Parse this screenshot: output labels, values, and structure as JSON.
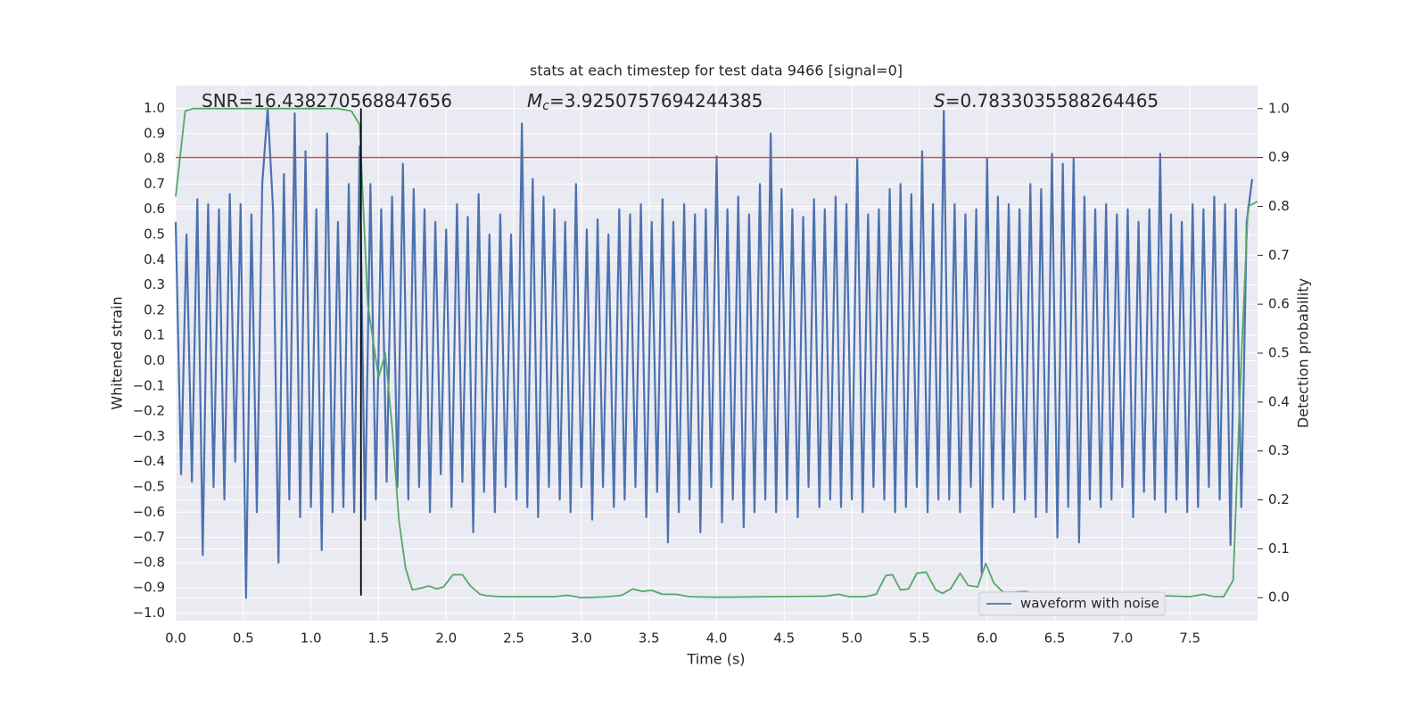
{
  "chart_data": {
    "type": "line",
    "title": "stats at each timestep for test data 9466 [signal=0]",
    "xlabel": "Time (s)",
    "ylabel": "Whitened strain",
    "y2label": "Detection probability",
    "xlim": [
      0,
      8.0
    ],
    "ylim": [
      -1.03,
      1.09
    ],
    "y2lim": [
      -0.047,
      1.047
    ],
    "xticks": [
      {
        "value": 0,
        "label": "0.0"
      },
      0.5,
      {
        "value": 1,
        "label": "1.0"
      },
      1.5,
      {
        "value": 2,
        "label": "2.0"
      },
      2.5,
      {
        "value": 3,
        "label": "3.0"
      },
      3.5,
      {
        "value": 4,
        "label": "4.0"
      },
      4.5,
      {
        "value": 5,
        "label": "5.0"
      },
      5.5,
      {
        "value": 6,
        "label": "6.0"
      },
      6.5,
      {
        "value": 7,
        "label": "7.0"
      },
      7.5
    ],
    "yticks": [
      {
        "value": -1,
        "label": "−1.0"
      },
      {
        "value": -0.9,
        "label": "−0.9"
      },
      {
        "value": -0.8,
        "label": "−0.8"
      },
      {
        "value": -0.7,
        "label": "−0.7"
      },
      {
        "value": -0.6,
        "label": "−0.6"
      },
      {
        "value": -0.5,
        "label": "−0.5"
      },
      {
        "value": -0.4,
        "label": "−0.4"
      },
      {
        "value": -0.3,
        "label": "−0.3"
      },
      {
        "value": -0.2,
        "label": "−0.2"
      },
      {
        "value": -0.1,
        "label": "−0.1"
      },
      {
        "value": 0,
        "label": "0.0"
      },
      0.1,
      0.2,
      0.3,
      0.4,
      0.5,
      0.6,
      0.7,
      0.8,
      0.9,
      {
        "value": 1,
        "label": "1.0"
      }
    ],
    "y2ticks": [
      {
        "value": 0,
        "label": "0.0"
      },
      0.1,
      0.2,
      0.3,
      0.4,
      0.5,
      0.6,
      0.7,
      0.8,
      0.9,
      {
        "value": 1,
        "label": "1.0"
      }
    ],
    "grid": true,
    "legend": "lower right",
    "series": [
      {
        "name": "waveform with noise",
        "color": "#4c72b0",
        "x": [
          0,
          0.04,
          0.08,
          0.12,
          0.16,
          0.2,
          0.24,
          0.28,
          0.32,
          0.36,
          0.4,
          0.44,
          0.48,
          0.52,
          0.56,
          0.6,
          0.64,
          0.68,
          0.72,
          0.76,
          0.8,
          0.84,
          0.88,
          0.92,
          0.96,
          1.0,
          1.04,
          1.08,
          1.12,
          1.16,
          1.2,
          1.24,
          1.28,
          1.32,
          1.36,
          1.4,
          1.44,
          1.48,
          1.52,
          1.56,
          1.6,
          1.64,
          1.68,
          1.72,
          1.76,
          1.8,
          1.84,
          1.88,
          1.92,
          1.96,
          2.0,
          2.04,
          2.08,
          2.12,
          2.16,
          2.2,
          2.24,
          2.28,
          2.32,
          2.36,
          2.4,
          2.44,
          2.48,
          2.52,
          2.56,
          2.6,
          2.64,
          2.68,
          2.72,
          2.76,
          2.8,
          2.84,
          2.88,
          2.92,
          2.96,
          3.0,
          3.04,
          3.08,
          3.12,
          3.16,
          3.2,
          3.24,
          3.28,
          3.32,
          3.36,
          3.4,
          3.44,
          3.48,
          3.52,
          3.56,
          3.6,
          3.64,
          3.68,
          3.72,
          3.76,
          3.8,
          3.84,
          3.88,
          3.92,
          3.96,
          4.0,
          4.04,
          4.08,
          4.12,
          4.16,
          4.2,
          4.24,
          4.28,
          4.32,
          4.36,
          4.4,
          4.44,
          4.48,
          4.52,
          4.56,
          4.6,
          4.64,
          4.68,
          4.72,
          4.76,
          4.8,
          4.84,
          4.88,
          4.92,
          4.96,
          5.0,
          5.04,
          5.08,
          5.12,
          5.16,
          5.2,
          5.24,
          5.28,
          5.32,
          5.36,
          5.4,
          5.44,
          5.48,
          5.52,
          5.56,
          5.6,
          5.64,
          5.68,
          5.72,
          5.76,
          5.8,
          5.84,
          5.88,
          5.92,
          5.96,
          6.0,
          6.04,
          6.08,
          6.12,
          6.16,
          6.2,
          6.24,
          6.28,
          6.32,
          6.36,
          6.4,
          6.44,
          6.48,
          6.52,
          6.56,
          6.6,
          6.64,
          6.68,
          6.72,
          6.76,
          6.8,
          6.84,
          6.88,
          6.92,
          6.96,
          7.0,
          7.04,
          7.08,
          7.12,
          7.16,
          7.2,
          7.24,
          7.28,
          7.32,
          7.36,
          7.4,
          7.44,
          7.48,
          7.52,
          7.56,
          7.6,
          7.64,
          7.68,
          7.72,
          7.76,
          7.8,
          7.84,
          7.88,
          7.92,
          7.96
        ],
        "values": [
          0.55,
          -0.45,
          0.5,
          -0.48,
          0.64,
          -0.77,
          0.62,
          -0.5,
          0.6,
          -0.55,
          0.66,
          -0.4,
          0.62,
          -0.94,
          0.58,
          -0.6,
          0.7,
          1.0,
          0.6,
          -0.8,
          0.74,
          -0.55,
          0.98,
          -0.62,
          0.83,
          -0.58,
          0.6,
          -0.75,
          0.9,
          -0.6,
          0.55,
          -0.58,
          0.7,
          -0.6,
          0.85,
          -0.63,
          0.7,
          -0.55,
          0.6,
          -0.48,
          0.65,
          -0.5,
          0.78,
          -0.55,
          0.68,
          -0.5,
          0.6,
          -0.6,
          0.55,
          -0.45,
          0.52,
          -0.58,
          0.62,
          -0.48,
          0.57,
          -0.68,
          0.66,
          -0.52,
          0.5,
          -0.6,
          0.58,
          -0.5,
          0.5,
          -0.55,
          0.94,
          -0.58,
          0.72,
          -0.62,
          0.65,
          -0.5,
          0.6,
          -0.55,
          0.55,
          -0.6,
          0.7,
          -0.5,
          0.52,
          -0.63,
          0.56,
          -0.5,
          0.5,
          -0.58,
          0.6,
          -0.55,
          0.58,
          -0.5,
          0.62,
          -0.62,
          0.55,
          -0.52,
          0.64,
          -0.72,
          0.55,
          -0.6,
          0.62,
          -0.55,
          0.58,
          -0.68,
          0.6,
          -0.5,
          0.81,
          -0.64,
          0.6,
          -0.55,
          0.65,
          -0.66,
          0.58,
          -0.6,
          0.7,
          -0.55,
          0.9,
          -0.6,
          0.68,
          -0.55,
          0.6,
          -0.62,
          0.57,
          -0.5,
          0.64,
          -0.58,
          0.6,
          -0.55,
          0.65,
          -0.58,
          0.62,
          -0.55,
          0.8,
          -0.6,
          0.58,
          -0.5,
          0.6,
          -0.55,
          0.68,
          -0.6,
          0.7,
          -0.58,
          0.66,
          -0.5,
          0.83,
          -0.6,
          0.62,
          -0.55,
          0.99,
          -0.55,
          0.62,
          -0.6,
          0.58,
          -0.5,
          0.6,
          -0.84,
          0.8,
          -0.58,
          0.65,
          -0.55,
          0.62,
          -0.6,
          0.6,
          -0.55,
          0.7,
          -0.62,
          0.68,
          -0.6,
          0.82,
          -0.7,
          0.78,
          -0.58,
          0.8,
          -0.72,
          0.65,
          -0.55,
          0.6,
          -0.58,
          0.62,
          -0.55,
          0.58,
          -0.5,
          0.6,
          -0.62,
          0.55,
          -0.52,
          0.6,
          -0.55,
          0.82,
          -0.6,
          0.58,
          -0.55,
          0.55,
          -0.6,
          0.62,
          -0.58,
          0.6,
          -0.5,
          0.65,
          -0.55,
          0.62,
          -0.73,
          0.6,
          -0.58,
          0.55,
          0.72
        ]
      },
      {
        "color": "#55a868",
        "axis": "y2",
        "x": [
          0,
          0.07,
          0.13,
          0.4,
          0.8,
          1.2,
          1.3,
          1.36,
          1.42,
          1.5,
          1.55,
          1.6,
          1.65,
          1.7,
          1.75,
          1.82,
          1.87,
          1.93,
          1.98,
          2.05,
          2.12,
          2.18,
          2.25,
          2.3,
          2.4,
          2.8,
          2.9,
          3.0,
          3.2,
          3.3,
          3.38,
          3.45,
          3.52,
          3.6,
          3.7,
          3.8,
          4.0,
          4.8,
          4.9,
          4.98,
          5.1,
          5.18,
          5.25,
          5.3,
          5.36,
          5.42,
          5.48,
          5.55,
          5.62,
          5.67,
          5.73,
          5.8,
          5.86,
          5.93,
          5.99,
          6.05,
          6.12,
          6.2,
          6.28,
          6.4,
          6.6,
          6.8,
          7.0,
          7.3,
          7.5,
          7.6,
          7.68,
          7.75,
          7.82,
          7.88,
          7.93,
          8.0
        ],
        "values": [
          0.82,
          0.995,
          1.0,
          1.0,
          1.0,
          1.0,
          0.995,
          0.967,
          0.6,
          0.45,
          0.5,
          0.35,
          0.16,
          0.06,
          0.016,
          0.02,
          0.024,
          0.018,
          0.022,
          0.047,
          0.047,
          0.024,
          0.007,
          0.004,
          0.002,
          0.002,
          0.005,
          0.0,
          0.002,
          0.005,
          0.018,
          0.013,
          0.015,
          0.007,
          0.007,
          0.002,
          0.001,
          0.003,
          0.007,
          0.002,
          0.002,
          0.007,
          0.045,
          0.047,
          0.016,
          0.018,
          0.05,
          0.052,
          0.016,
          0.009,
          0.018,
          0.05,
          0.025,
          0.022,
          0.07,
          0.03,
          0.011,
          0.011,
          0.013,
          0.005,
          0.004,
          0.005,
          0.002,
          0.004,
          0.002,
          0.007,
          0.002,
          0.002,
          0.036,
          0.49,
          0.8,
          0.81
        ]
      }
    ],
    "hline": {
      "value": 0.9,
      "axis": "y2",
      "color": "#c44e52"
    },
    "vline": {
      "x": 1.37,
      "ymin": -0.93,
      "ymax": 1.0,
      "color": "#000000"
    },
    "annotations": [
      [
        "SNR=16.438270568847656"
      ],
      [
        "M",
        "c",
        "=3.9250757694244385"
      ],
      [
        "S",
        "=0.7833035588264465"
      ]
    ]
  }
}
